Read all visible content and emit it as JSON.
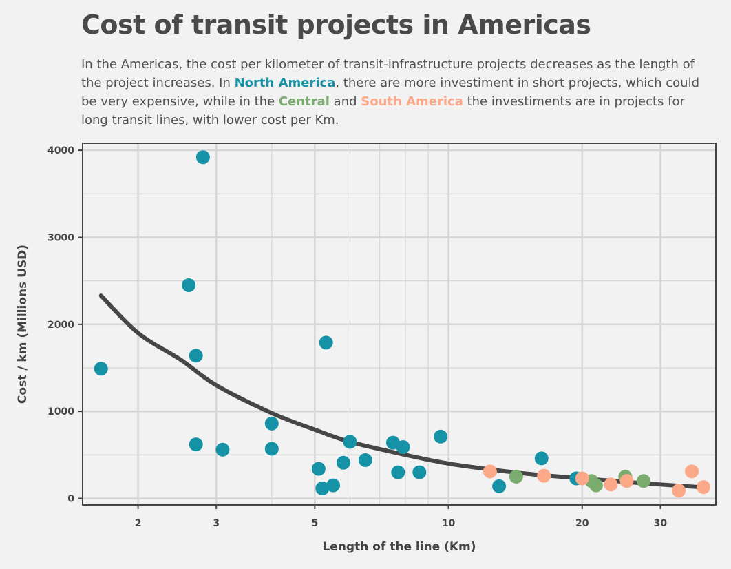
{
  "title": "Cost of transit projects in Americas",
  "subtitle": {
    "part1": "In the Americas, the cost per kilometer of transit-infrastructure projects decreases as the length of the project increases. In ",
    "north_america": "North America",
    "part2": ", there are more investiment in short projects, which could be very expensive, while in the ",
    "central": "Central",
    "part3": " and ",
    "south_america": "South America",
    "part4": " the investiments are in projects for long transit lines, with lower cost per Km."
  },
  "colors": {
    "north_america": "#1592a6",
    "central": "#7aab6f",
    "south_america": "#fca98a",
    "trend": "#464646",
    "grid": "#d6d6d6"
  },
  "chart_data": {
    "type": "scatter",
    "title": "Cost of transit projects in Americas",
    "xlabel": "Length of the line (Km)",
    "ylabel": "Cost / km (Millions USD)",
    "x_scale": "log",
    "xlim": [
      1.5,
      40
    ],
    "ylim": [
      -75,
      4080
    ],
    "x_ticks": [
      2,
      3,
      5,
      10,
      20,
      30
    ],
    "x_tick_labels": [
      "2",
      "3",
      "5",
      "10",
      "20",
      "30"
    ],
    "y_ticks": [
      0,
      1000,
      2000,
      3000,
      4000
    ],
    "y_tick_labels": [
      "0",
      "1000",
      "2000",
      "3000",
      "4000"
    ],
    "grid": true,
    "series": [
      {
        "name": "North America",
        "color": "#1592a6",
        "points": [
          {
            "x": 1.65,
            "y": 1490
          },
          {
            "x": 2.6,
            "y": 2450
          },
          {
            "x": 2.8,
            "y": 3920
          },
          {
            "x": 2.7,
            "y": 1640
          },
          {
            "x": 2.7,
            "y": 620
          },
          {
            "x": 3.1,
            "y": 560
          },
          {
            "x": 4.0,
            "y": 860
          },
          {
            "x": 4.0,
            "y": 570
          },
          {
            "x": 5.1,
            "y": 340
          },
          {
            "x": 5.3,
            "y": 1790
          },
          {
            "x": 5.2,
            "y": 115
          },
          {
            "x": 5.5,
            "y": 150
          },
          {
            "x": 5.8,
            "y": 410
          },
          {
            "x": 6.0,
            "y": 650
          },
          {
            "x": 6.5,
            "y": 440
          },
          {
            "x": 7.5,
            "y": 640
          },
          {
            "x": 7.9,
            "y": 590
          },
          {
            "x": 7.7,
            "y": 300
          },
          {
            "x": 8.6,
            "y": 300
          },
          {
            "x": 9.6,
            "y": 710
          },
          {
            "x": 13.0,
            "y": 140
          },
          {
            "x": 16.2,
            "y": 460
          },
          {
            "x": 19.4,
            "y": 230
          }
        ]
      },
      {
        "name": "Central",
        "color": "#7aab6f",
        "points": [
          {
            "x": 14.2,
            "y": 250
          },
          {
            "x": 21.0,
            "y": 200
          },
          {
            "x": 21.5,
            "y": 150
          },
          {
            "x": 25.0,
            "y": 250
          },
          {
            "x": 27.5,
            "y": 200
          }
        ]
      },
      {
        "name": "South America",
        "color": "#fca98a",
        "points": [
          {
            "x": 12.4,
            "y": 310
          },
          {
            "x": 16.4,
            "y": 260
          },
          {
            "x": 20.0,
            "y": 230
          },
          {
            "x": 23.2,
            "y": 160
          },
          {
            "x": 25.2,
            "y": 200
          },
          {
            "x": 33.0,
            "y": 90
          },
          {
            "x": 35.3,
            "y": 310
          },
          {
            "x": 37.5,
            "y": 130
          }
        ]
      }
    ],
    "trend": {
      "type": "smooth",
      "points": [
        {
          "x": 1.65,
          "y": 2330
        },
        {
          "x": 2.0,
          "y": 1900
        },
        {
          "x": 2.5,
          "y": 1590
        },
        {
          "x": 3.0,
          "y": 1300
        },
        {
          "x": 4.0,
          "y": 980
        },
        {
          "x": 5.0,
          "y": 790
        },
        {
          "x": 6.0,
          "y": 650
        },
        {
          "x": 8.0,
          "y": 500
        },
        {
          "x": 10.0,
          "y": 400
        },
        {
          "x": 13.0,
          "y": 320
        },
        {
          "x": 16.0,
          "y": 270
        },
        {
          "x": 20.0,
          "y": 230
        },
        {
          "x": 25.0,
          "y": 190
        },
        {
          "x": 30.0,
          "y": 160
        },
        {
          "x": 38.0,
          "y": 125
        }
      ]
    }
  }
}
